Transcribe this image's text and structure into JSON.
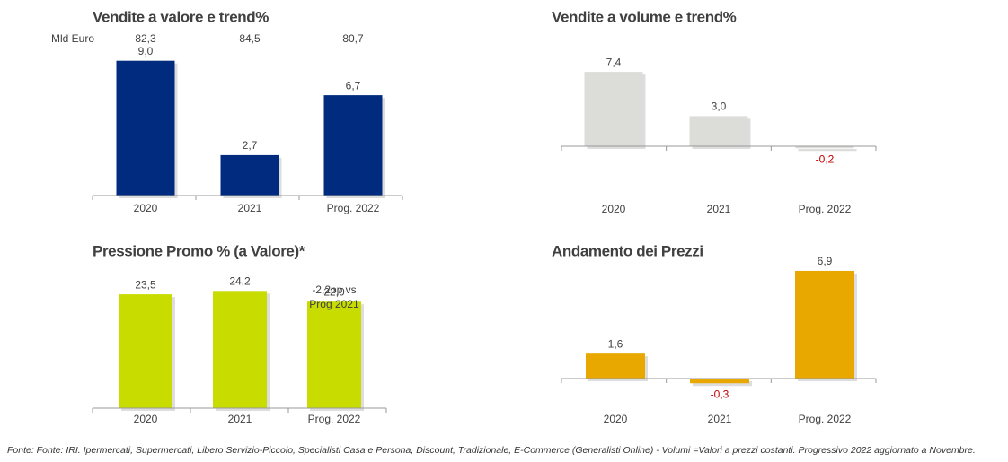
{
  "chart_data": [
    {
      "type": "bar",
      "title": "Vendite a valore e trend%",
      "categories": [
        "2020",
        "2021",
        "Prog. 2022"
      ],
      "values": [
        9.0,
        2.7,
        6.7
      ],
      "value_labels": [
        "9,0",
        "2,7",
        "6,7"
      ],
      "color": "#002b7f",
      "unit_label": "Mld Euro",
      "totals": [
        82.3,
        84.5,
        80.7
      ],
      "totals_labels": [
        "82,3",
        "84,5",
        "80,7"
      ]
    },
    {
      "type": "bar",
      "title": "Vendite a volume e trend%",
      "categories": [
        "2020",
        "2021",
        "Prog. 2022"
      ],
      "values": [
        7.4,
        3.0,
        -0.2
      ],
      "value_labels": [
        "7,4",
        "3,0",
        "-0,2"
      ],
      "color": "#dcdcd8"
    },
    {
      "type": "bar",
      "title": "Pressione Promo % (a Valore)*",
      "categories": [
        "2020",
        "2021",
        "Prog. 2022"
      ],
      "values": [
        23.5,
        24.2,
        22.0
      ],
      "value_labels": [
        "23,5",
        "24,2",
        "22,0"
      ],
      "color": "#c8dc00",
      "annotation": [
        "-2,2pp vs",
        "Prog 2021"
      ]
    },
    {
      "type": "bar",
      "title": "Andamento dei Prezzi",
      "categories": [
        "2020",
        "2021",
        "Prog. 2022"
      ],
      "values": [
        1.6,
        -0.3,
        6.9
      ],
      "value_labels": [
        "1,6",
        "-0,3",
        "6,9"
      ],
      "color": "#e8a800"
    }
  ],
  "footnote": "Fonte: Fonte: IRI. Ipermercati, Supermercati, Libero Servizio-Piccolo, Specialisti Casa e Persona, Discount, Tradizionale, E-Commerce (Generalisti Online) -  Volumi =Valori a prezzi costanti. Progressivo 2022 aggiornato a Novembre."
}
